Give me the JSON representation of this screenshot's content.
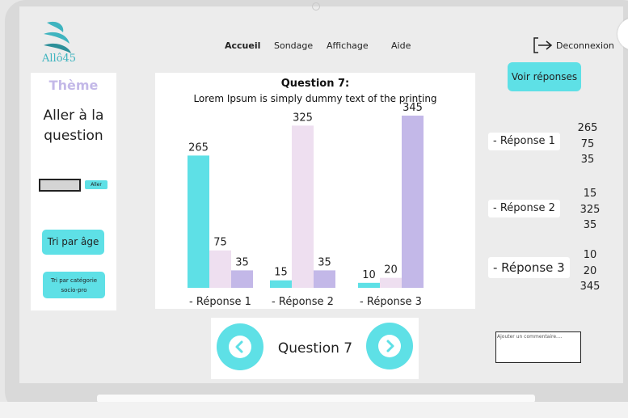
{
  "app": {
    "logo_text": "Allô45"
  },
  "nav": {
    "items": [
      "Accueil",
      "Sondage",
      "Affichage",
      "Aide"
    ],
    "active": "Accueil",
    "logout_label": "Deconnexion"
  },
  "sidebar": {
    "theme_label": "Thème",
    "goto_label": "Aller à la question",
    "goto_button": "Aller",
    "sort_age": "Tri par âge",
    "sort_category": "Tri par catégorie socio-pro"
  },
  "question": {
    "title": "Question 7:",
    "subtitle": "Lorem Ipsum is simply dummy text of the printing"
  },
  "chart_data": {
    "type": "bar",
    "title": "Question 7:",
    "subtitle": "Lorem Ipsum is simply dummy text of the printing",
    "categories": [
      "- Réponse 1",
      "- Réponse 2",
      "- Réponse 3"
    ],
    "series": [
      {
        "values": [
          265,
          15,
          10
        ],
        "color": "#5ee0e6"
      },
      {
        "values": [
          75,
          325,
          20
        ],
        "color": "#eedff0"
      },
      {
        "values": [
          35,
          35,
          345
        ],
        "color": "#c3b8e8"
      }
    ],
    "ylim": [
      0,
      345
    ],
    "grid": false,
    "legend": "none"
  },
  "responses": {
    "see_button": "Voir réponses",
    "items": [
      {
        "label": "- Réponse 1",
        "values": [
          "265",
          "75",
          "35"
        ]
      },
      {
        "label": "- Réponse 2",
        "values": [
          "15",
          "325",
          "35"
        ]
      },
      {
        "label": "- Réponse 3",
        "values": [
          "10",
          "20",
          "345"
        ]
      }
    ]
  },
  "pager": {
    "label": "Question 7"
  },
  "comment": {
    "placeholder": "Ajouter un commentaire...."
  },
  "colors": {
    "accent": "#5ee0e6",
    "lavender": "#c3b8e8",
    "pink": "#eedff0"
  }
}
